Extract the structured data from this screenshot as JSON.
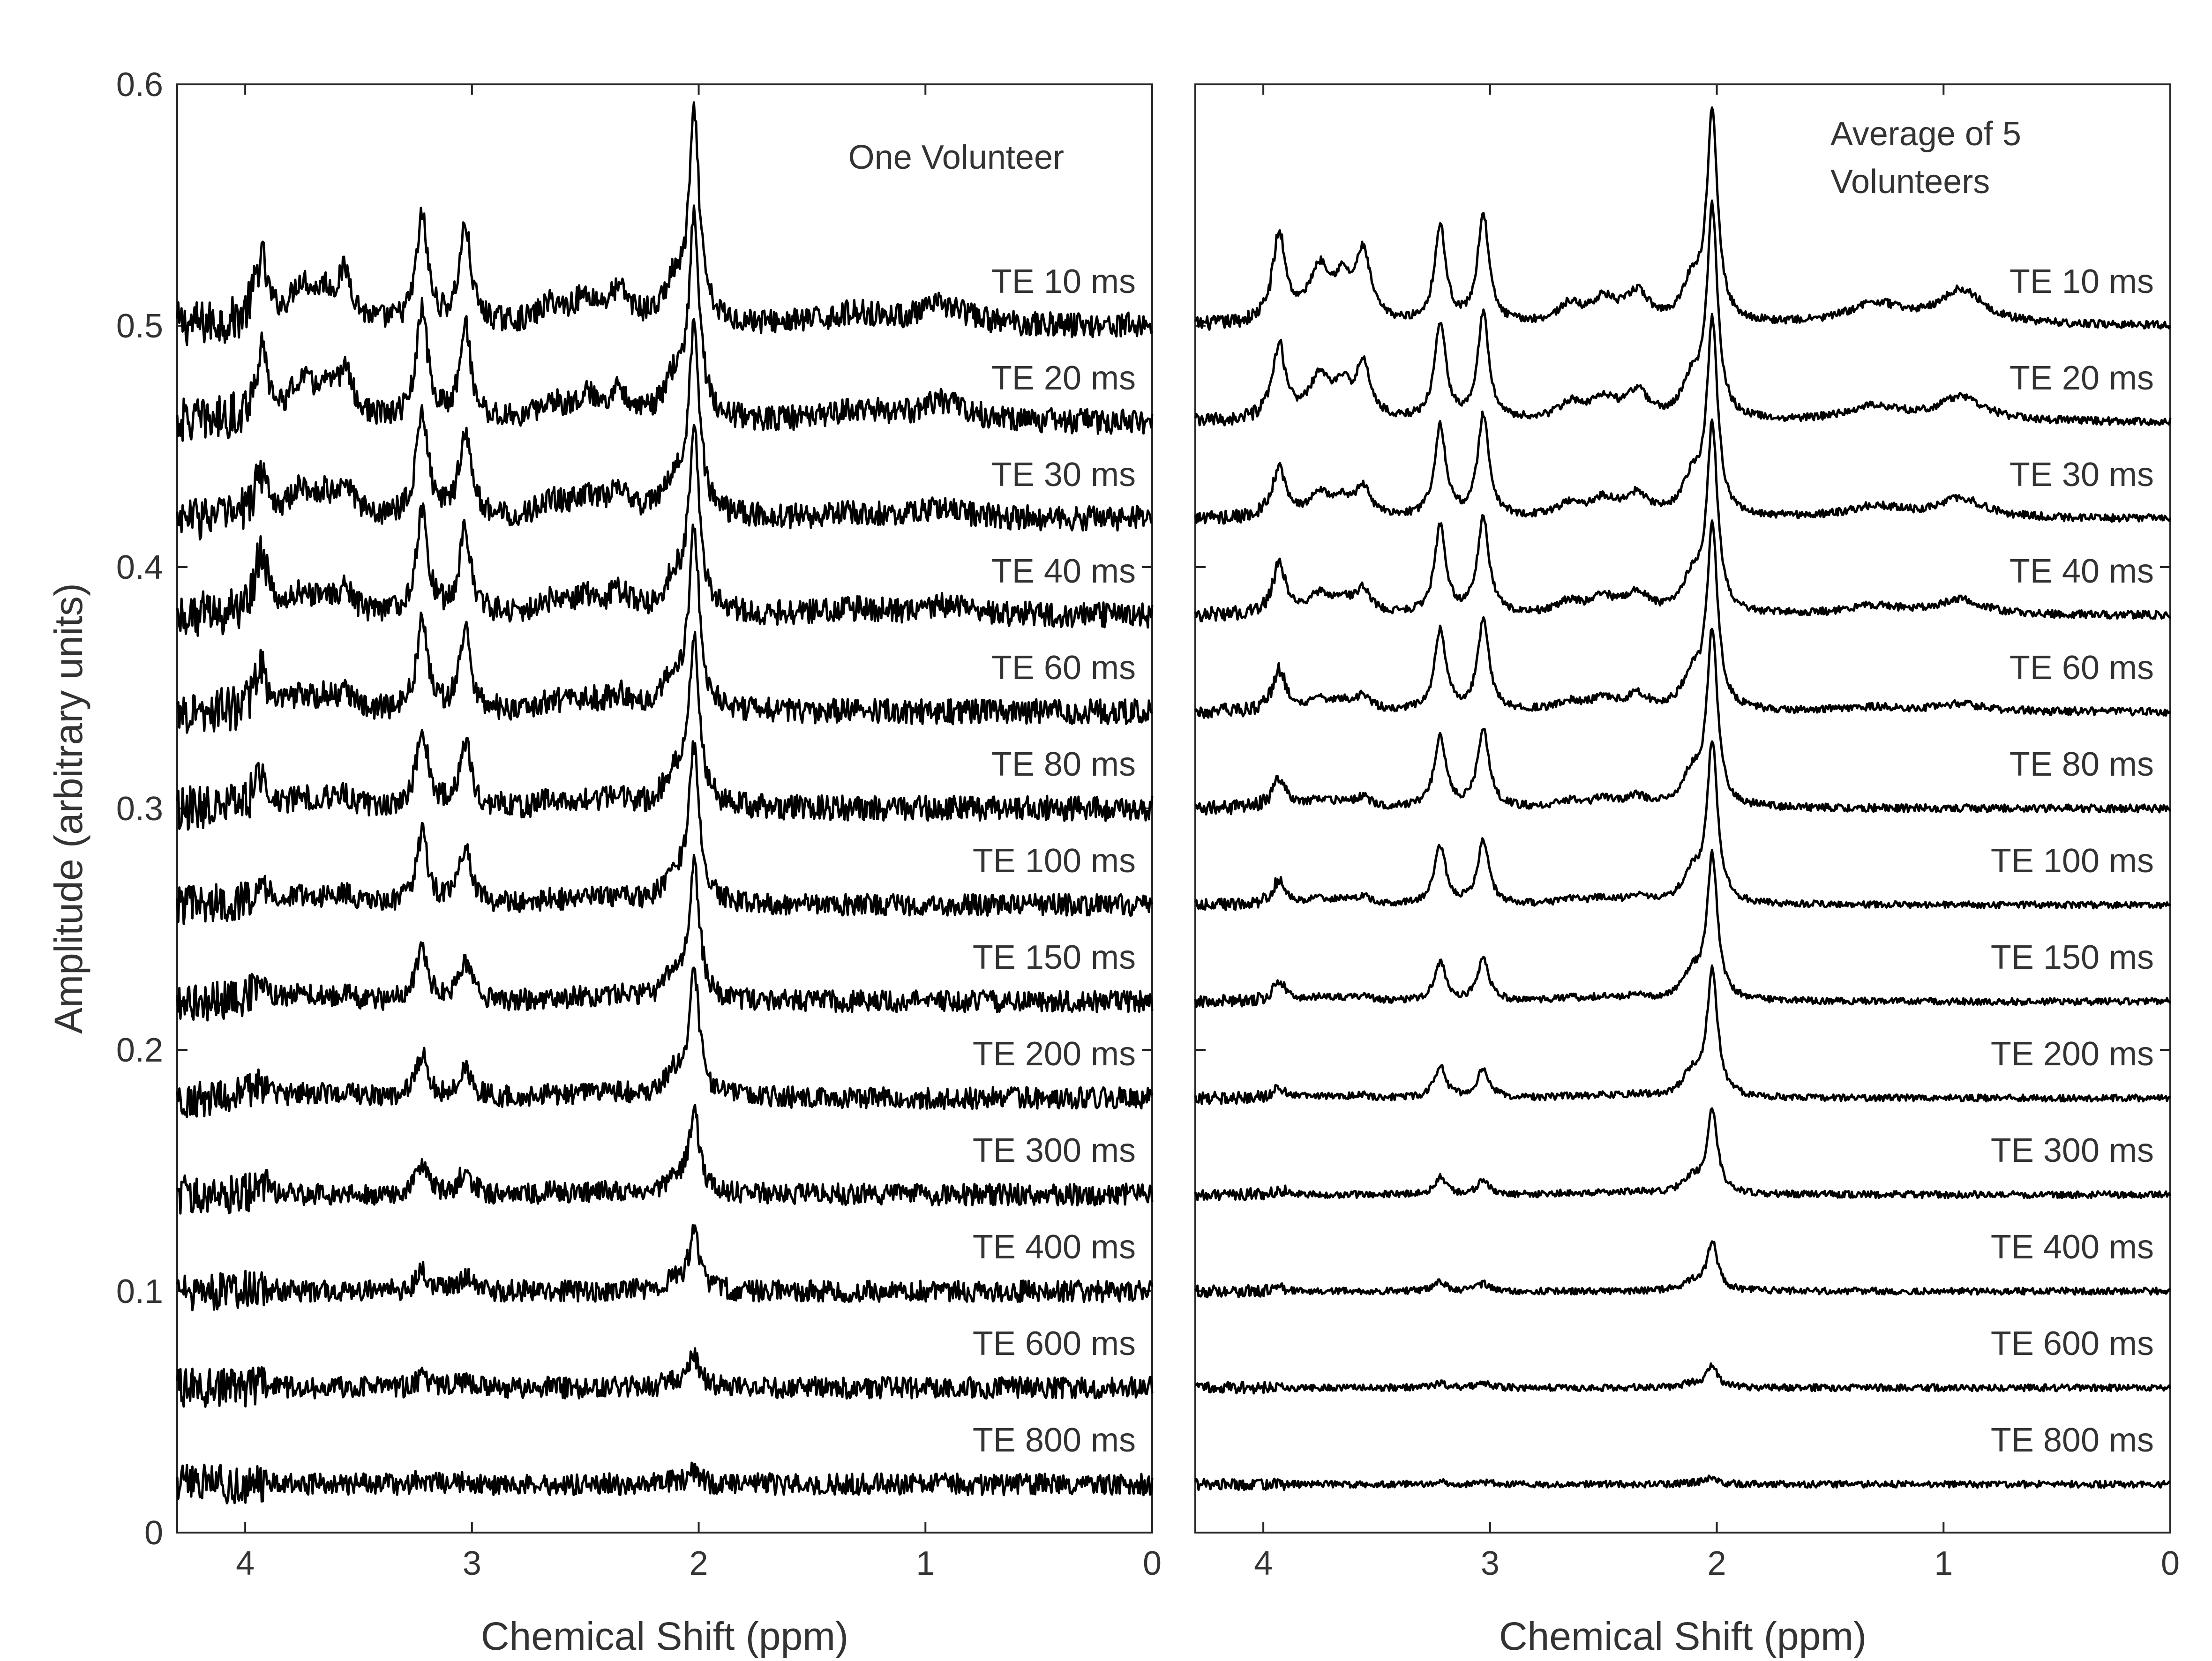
{
  "chart_data": [
    {
      "type": "line",
      "title": "One Volunteer",
      "xlabel": "Chemical Shift (ppm)",
      "ylabel": "Amplitude (arbitrary units)",
      "xlim": [
        4.3,
        0
      ],
      "ylim": [
        0,
        0.6
      ],
      "x_ticks": [
        "4",
        "3",
        "2",
        "1",
        "0"
      ],
      "y_ticks": [
        "0",
        "0.1",
        "0.2",
        "0.3",
        "0.4",
        "0.5",
        "0.6"
      ],
      "noise": 0.0045,
      "series": [
        {
          "name": "TE 10 ms",
          "baseline": 0.5,
          "naa": 0.083,
          "cr": 0.044,
          "cho": 0.04,
          "cr2": 0.026,
          "ins": 0.02,
          "glx": 0.012,
          "lip": 0.008
        },
        {
          "name": "TE 20 ms",
          "baseline": 0.46,
          "naa": 0.082,
          "cr": 0.045,
          "cho": 0.039,
          "cr2": 0.027,
          "ins": 0.02,
          "glx": 0.011,
          "lip": 0.008
        },
        {
          "name": "TE 30 ms",
          "baseline": 0.42,
          "naa": 0.077,
          "cr": 0.045,
          "cho": 0.036,
          "cr2": 0.018,
          "ins": 0.014,
          "glx": 0.01,
          "lip": 0.004
        },
        {
          "name": "TE 40 ms",
          "baseline": 0.38,
          "naa": 0.075,
          "cr": 0.043,
          "cho": 0.035,
          "cr2": 0.025,
          "ins": 0.01,
          "glx": 0.008,
          "lip": 0.004
        },
        {
          "name": "TE 60 ms",
          "baseline": 0.34,
          "naa": 0.073,
          "cr": 0.036,
          "cho": 0.032,
          "cr2": 0.016,
          "ins": 0.008,
          "glx": 0.006,
          "lip": 0.0
        },
        {
          "name": "TE 80 ms",
          "baseline": 0.3,
          "naa": 0.07,
          "cr": 0.033,
          "cho": 0.027,
          "cr2": 0.014,
          "ins": 0.005,
          "glx": 0.004,
          "lip": 0.0
        },
        {
          "name": "TE 100 ms",
          "baseline": 0.26,
          "naa": 0.064,
          "cr": 0.029,
          "cho": 0.024,
          "cr2": 0.011,
          "ins": 0.004,
          "glx": 0.003,
          "lip": 0.0
        },
        {
          "name": "TE 150 ms",
          "baseline": 0.22,
          "naa": 0.055,
          "cr": 0.022,
          "cho": 0.016,
          "cr2": 0.008,
          "ins": 0.003,
          "glx": 0.002,
          "lip": 0.0
        },
        {
          "name": "TE 200 ms",
          "baseline": 0.18,
          "naa": 0.05,
          "cr": 0.018,
          "cho": 0.013,
          "cr2": 0.006,
          "ins": 0.002,
          "glx": 0.002,
          "lip": 0.0
        },
        {
          "name": "TE 300 ms",
          "baseline": 0.14,
          "naa": 0.034,
          "cr": 0.012,
          "cho": 0.01,
          "cr2": 0.004,
          "ins": 0.0,
          "glx": 0.001,
          "lip": 0.0
        },
        {
          "name": "TE 400 ms",
          "baseline": 0.1,
          "naa": 0.024,
          "cr": 0.008,
          "cho": 0.006,
          "cr2": 0.002,
          "ins": 0.0,
          "glx": 0.0,
          "lip": 0.0
        },
        {
          "name": "TE 600 ms",
          "baseline": 0.06,
          "naa": 0.013,
          "cr": 0.004,
          "cho": 0.003,
          "cr2": 0.001,
          "ins": 0.0,
          "glx": 0.0,
          "lip": 0.0
        },
        {
          "name": "TE 800 ms",
          "baseline": 0.02,
          "naa": 0.005,
          "cr": 0.002,
          "cho": 0.001,
          "cr2": 0.0,
          "ins": 0.0,
          "glx": 0.0,
          "lip": 0.0
        }
      ]
    },
    {
      "type": "line",
      "title": "Average of 5 Volunteers",
      "xlabel": "Chemical Shift (ppm)",
      "ylabel": "",
      "xlim": [
        4.3,
        0
      ],
      "ylim": [
        0,
        0.6
      ],
      "x_ticks": [
        "4",
        "3",
        "2",
        "1",
        "0"
      ],
      "y_ticks": [],
      "noise": 0.0014,
      "series": [
        {
          "name": "TE 10 ms",
          "baseline": 0.5,
          "naa": 0.087,
          "cr": 0.04,
          "cho": 0.045,
          "cr2": 0.036,
          "ins": 0.028,
          "glx": 0.012,
          "lip": 0.014
        },
        {
          "name": "TE 20 ms",
          "baseline": 0.46,
          "naa": 0.086,
          "cr": 0.04,
          "cho": 0.044,
          "cr2": 0.03,
          "ins": 0.022,
          "glx": 0.011,
          "lip": 0.01
        },
        {
          "name": "TE 30 ms",
          "baseline": 0.42,
          "naa": 0.08,
          "cr": 0.038,
          "cho": 0.042,
          "cr2": 0.02,
          "ins": 0.012,
          "glx": 0.009,
          "lip": 0.008
        },
        {
          "name": "TE 40 ms",
          "baseline": 0.38,
          "naa": 0.077,
          "cr": 0.036,
          "cho": 0.04,
          "cr2": 0.02,
          "ins": 0.01,
          "glx": 0.008,
          "lip": 0.006
        },
        {
          "name": "TE 60 ms",
          "baseline": 0.34,
          "naa": 0.076,
          "cr": 0.033,
          "cho": 0.037,
          "cr2": 0.017,
          "ins": 0.006,
          "glx": 0.006,
          "lip": 0.003
        },
        {
          "name": "TE 80 ms",
          "baseline": 0.3,
          "naa": 0.072,
          "cr": 0.03,
          "cho": 0.033,
          "cr2": 0.013,
          "ins": 0.004,
          "glx": 0.004,
          "lip": 0.0
        },
        {
          "name": "TE 100 ms",
          "baseline": 0.26,
          "naa": 0.066,
          "cr": 0.024,
          "cho": 0.026,
          "cr2": 0.01,
          "ins": 0.003,
          "glx": 0.003,
          "lip": 0.0
        },
        {
          "name": "TE 150 ms",
          "baseline": 0.22,
          "naa": 0.059,
          "cr": 0.016,
          "cho": 0.017,
          "cr2": 0.008,
          "ins": 0.002,
          "glx": 0.002,
          "lip": 0.0
        },
        {
          "name": "TE 200 ms",
          "baseline": 0.18,
          "naa": 0.052,
          "cr": 0.013,
          "cho": 0.012,
          "cr2": 0.004,
          "ins": 0.001,
          "glx": 0.001,
          "lip": 0.0
        },
        {
          "name": "TE 300 ms",
          "baseline": 0.14,
          "naa": 0.034,
          "cr": 0.007,
          "cho": 0.006,
          "cr2": 0.002,
          "ins": 0.0,
          "glx": 0.001,
          "lip": 0.0
        },
        {
          "name": "TE 400 ms",
          "baseline": 0.1,
          "naa": 0.02,
          "cr": 0.004,
          "cho": 0.003,
          "cr2": 0.001,
          "ins": 0.0,
          "glx": 0.0,
          "lip": 0.0
        },
        {
          "name": "TE 600 ms",
          "baseline": 0.06,
          "naa": 0.009,
          "cr": 0.002,
          "cho": 0.002,
          "cr2": 0.0,
          "ins": 0.0,
          "glx": 0.0,
          "lip": 0.0
        },
        {
          "name": "TE 800 ms",
          "baseline": 0.02,
          "naa": 0.003,
          "cr": 0.001,
          "cho": 0.001,
          "cr2": 0.0,
          "ins": 0.0,
          "glx": 0.0,
          "lip": 0.0
        }
      ]
    }
  ]
}
